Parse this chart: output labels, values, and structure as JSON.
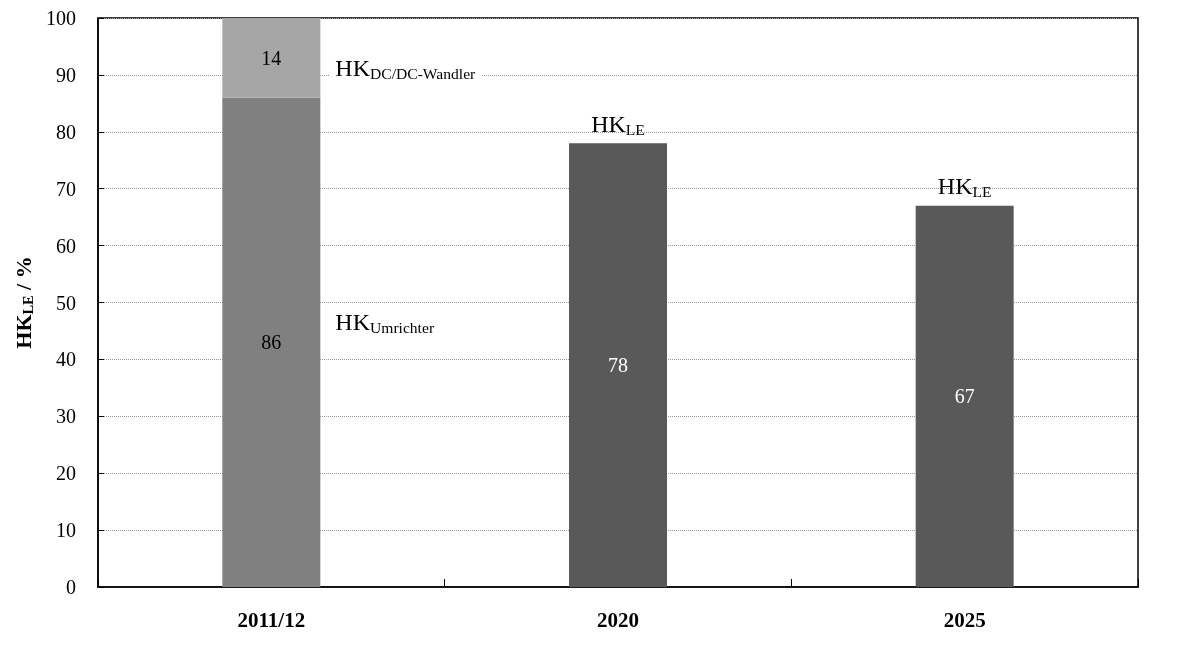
{
  "chart_data": {
    "type": "bar",
    "stacked": true,
    "ylabel": "HK$_{LE}$ / %",
    "categories": [
      "2011/12",
      "2020",
      "2025"
    ],
    "series": [
      {
        "colors": [
          "#808080",
          "#595959",
          "#595959"
        ],
        "values": [
          86,
          78,
          67
        ]
      },
      {
        "color": "#a6a6a6",
        "values": [
          14,
          null,
          null
        ]
      }
    ],
    "ylim": [
      0,
      100
    ],
    "yticks": [
      0,
      10,
      20,
      30,
      40,
      50,
      60,
      70,
      80,
      90,
      100
    ],
    "grid": "y",
    "data_labels": true,
    "annotations": [
      "HK$_{DC/DC-Wandler}$",
      "HK$_{Umrichter}$",
      {
        "text": "HK$_{LE}$",
        "x": "2020",
        "y": 78
      },
      {
        "text": "HK$_{LE}$",
        "x": "2025",
        "y": 67
      }
    ]
  }
}
